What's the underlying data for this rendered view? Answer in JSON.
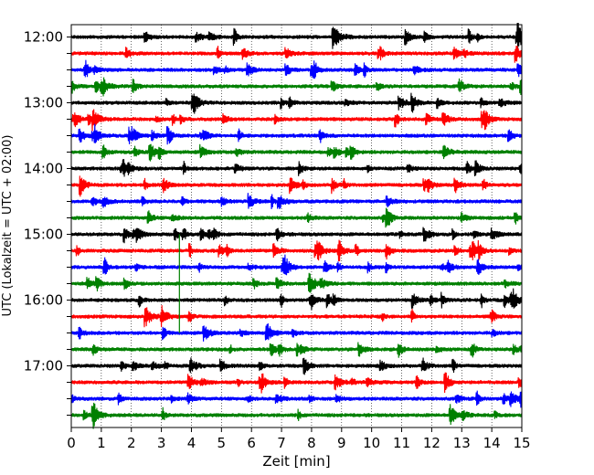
{
  "chart_data": {
    "type": "line",
    "title": "",
    "xlabel": "Zeit  [min]",
    "ylabel": "UTC (Lokalzeit = UTC + 02:00)",
    "xlim": [
      0,
      15
    ],
    "x_ticks": [
      "0",
      "1",
      "2",
      "3",
      "4",
      "5",
      "6",
      "7",
      "8",
      "9",
      "10",
      "11",
      "12",
      "13",
      "14",
      "15"
    ],
    "y_ticks": [
      "12:00",
      "13:00",
      "14:00",
      "15:00",
      "16:00",
      "17:00"
    ],
    "grid": "vertical dotted lines at each minute",
    "trace_interval_minutes": 15,
    "traces": [
      {
        "start": "12:00",
        "color": "#000000"
      },
      {
        "start": "12:15",
        "color": "#ff0000"
      },
      {
        "start": "12:30",
        "color": "#0000ff"
      },
      {
        "start": "12:45",
        "color": "#008000"
      },
      {
        "start": "13:00",
        "color": "#000000"
      },
      {
        "start": "13:15",
        "color": "#ff0000"
      },
      {
        "start": "13:30",
        "color": "#0000ff"
      },
      {
        "start": "13:45",
        "color": "#008000"
      },
      {
        "start": "14:00",
        "color": "#000000"
      },
      {
        "start": "14:15",
        "color": "#ff0000"
      },
      {
        "start": "14:30",
        "color": "#0000ff"
      },
      {
        "start": "14:45",
        "color": "#008000"
      },
      {
        "start": "15:00",
        "color": "#000000"
      },
      {
        "start": "15:15",
        "color": "#ff0000"
      },
      {
        "start": "15:30",
        "color": "#0000ff"
      },
      {
        "start": "15:45",
        "color": "#008000"
      },
      {
        "start": "16:00",
        "color": "#000000"
      },
      {
        "start": "16:15",
        "color": "#ff0000"
      },
      {
        "start": "16:30",
        "color": "#0000ff"
      },
      {
        "start": "16:45",
        "color": "#008000"
      },
      {
        "start": "17:00",
        "color": "#000000"
      },
      {
        "start": "17:15",
        "color": "#ff0000"
      },
      {
        "start": "17:30",
        "color": "#0000ff"
      },
      {
        "start": "17:45",
        "color": "#008000"
      }
    ]
  }
}
